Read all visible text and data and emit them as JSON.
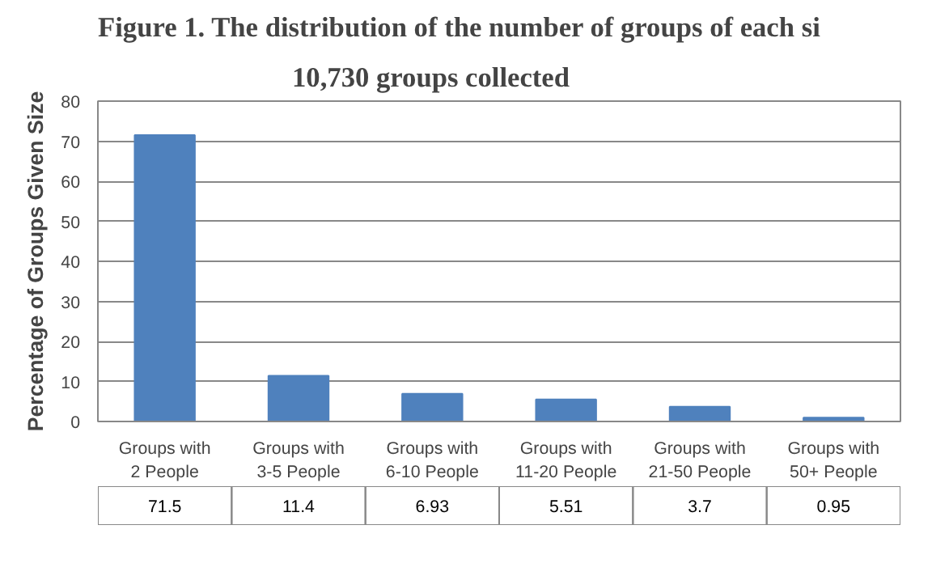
{
  "chart_data": {
    "type": "bar",
    "title": "Figure 1.          The distribution of the number of groups of each si",
    "subtitle": "10,730 groups collected",
    "ylabel": "Percentage of Groups Given Size",
    "categories": [
      "Groups with\n2 People",
      "Groups with\n3-5 People",
      "Groups with\n6-10 People",
      "Groups with\n11-20 People",
      "Groups with\n21-50 People",
      "Groups with\n50+ People"
    ],
    "values": [
      71.5,
      11.4,
      6.93,
      5.51,
      3.7,
      0.95
    ],
    "value_labels": [
      "71.5",
      "11.4",
      "6.93",
      "5.51",
      "3.7",
      "0.95"
    ],
    "color": "#4f81bd",
    "ylim": [
      0,
      80
    ],
    "yticks": [
      0,
      10,
      20,
      30,
      40,
      50,
      60,
      70,
      80
    ],
    "grid": "y"
  }
}
